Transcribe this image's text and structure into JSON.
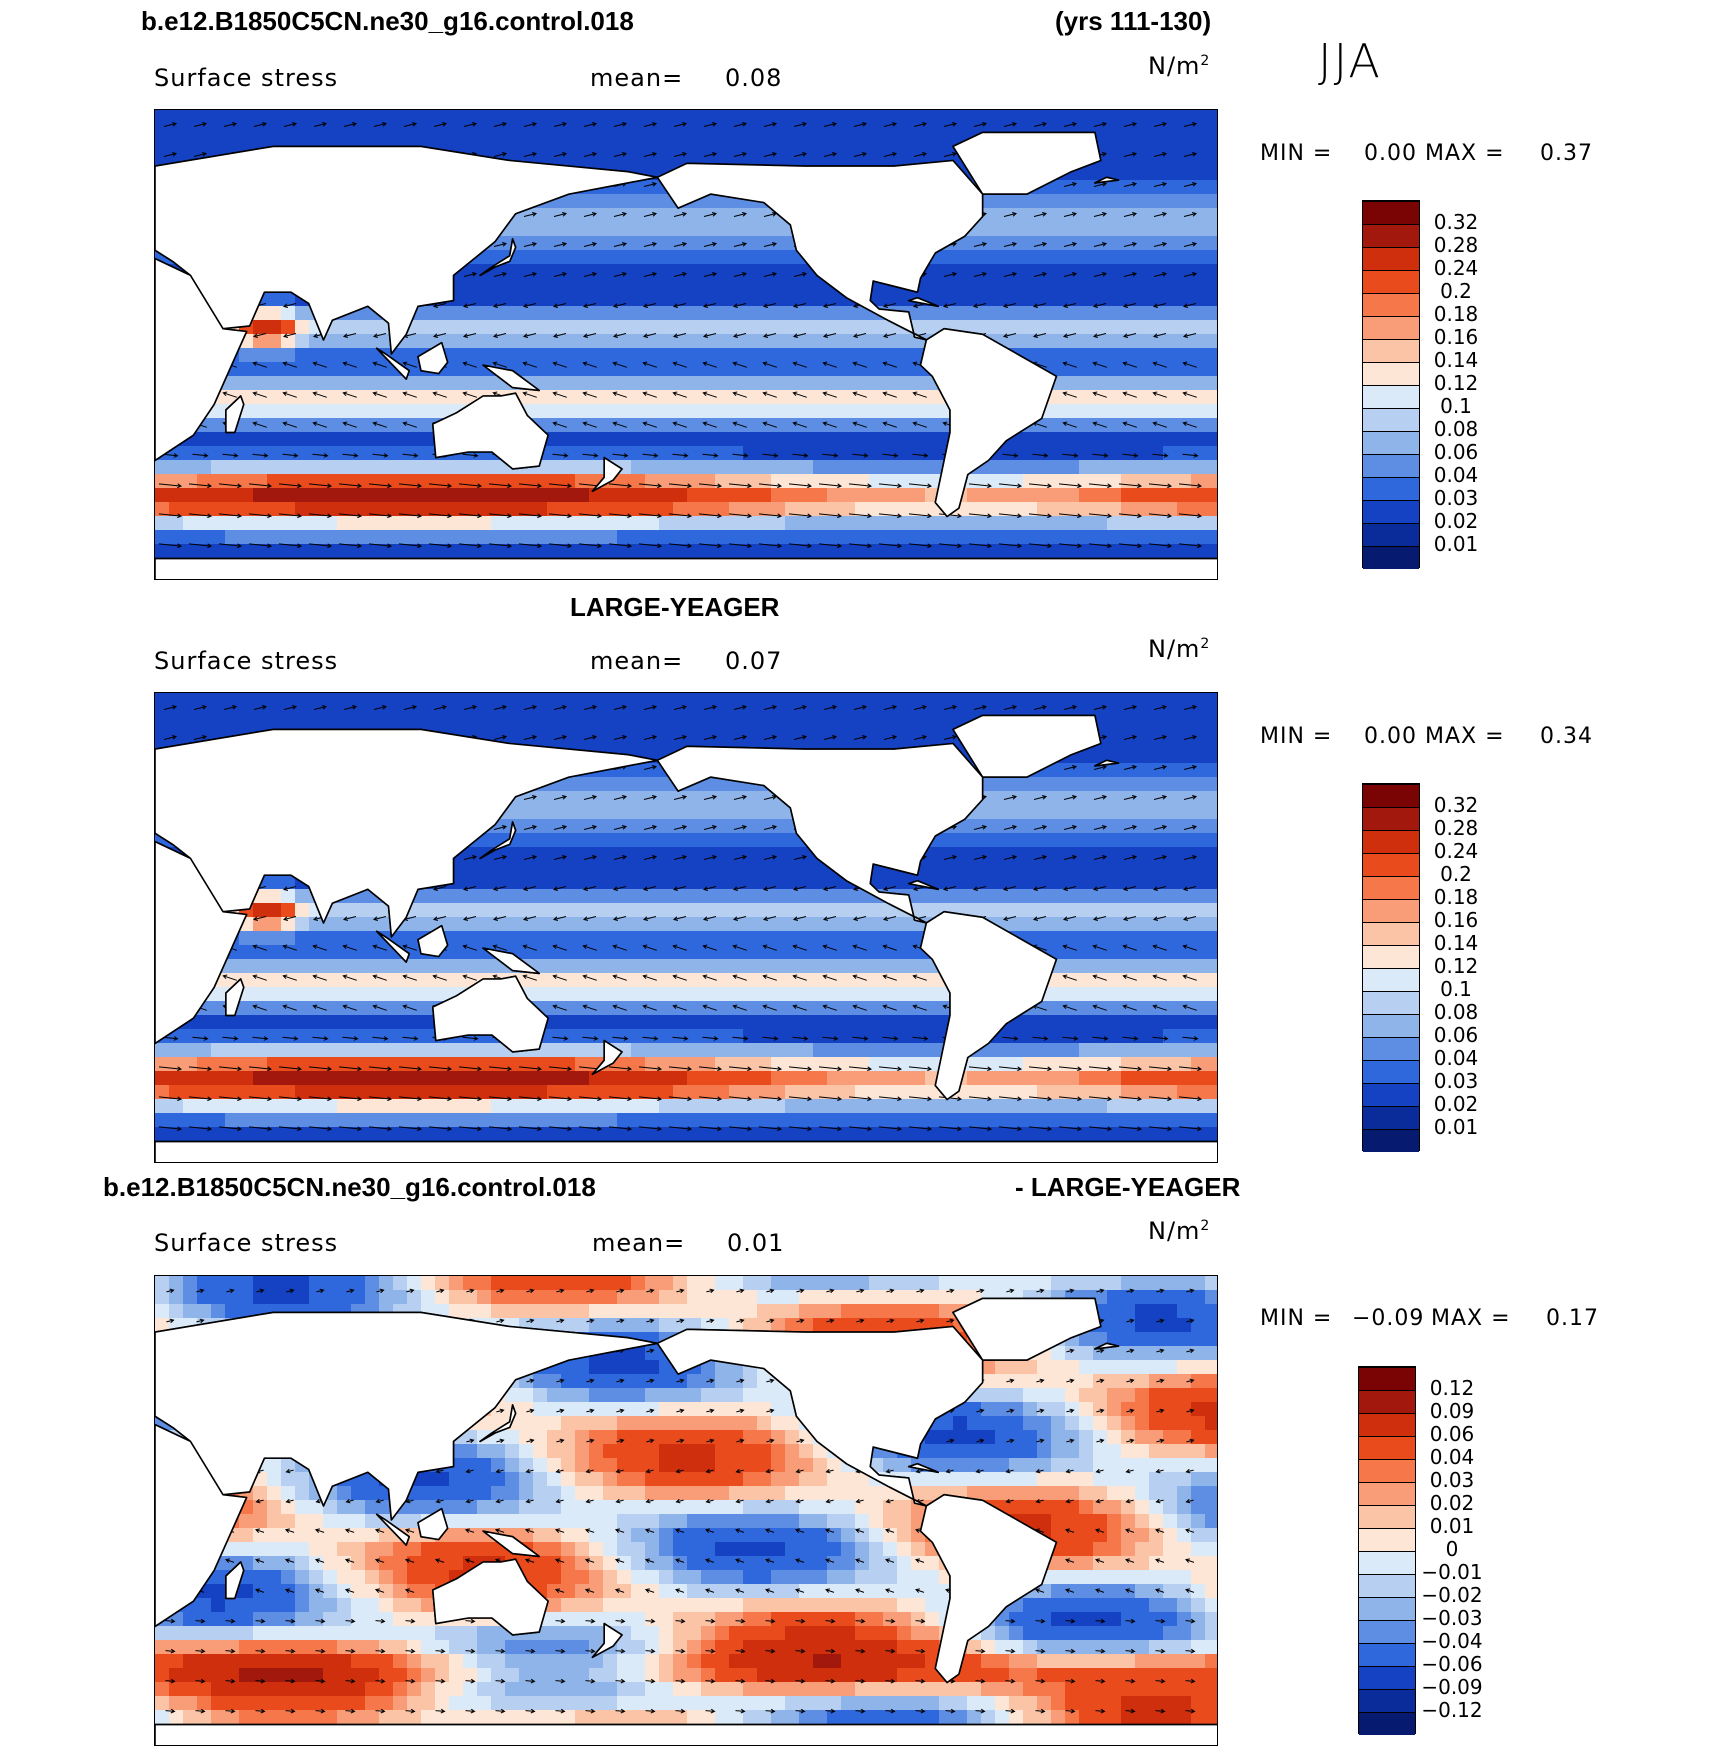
{
  "header": {
    "case_name": "b.e12.B1850C5CN.ne30_g16.control.018",
    "years": "(yrs 111-130)",
    "season": "JJA"
  },
  "panels": [
    {
      "title": "",
      "variable": "Surface stress",
      "mean_label": "mean=",
      "mean_value": "0.08",
      "unit_base": "N/m",
      "unit_exp": "2",
      "min_label": "MIN =",
      "min_value": "0.00",
      "max_label": "MAX =",
      "max_value": "0.37",
      "colorbar_labels": [
        "0.32",
        "0.28",
        "0.24",
        "0.2",
        "0.18",
        "0.16",
        "0.14",
        "0.12",
        "0.1",
        "0.08",
        "0.06",
        "0.04",
        "0.03",
        "0.02",
        "0.01"
      ],
      "colorbar_colors": [
        "#7a0403",
        "#a3180c",
        "#cf2f0c",
        "#e94b1d",
        "#f6774a",
        "#f89d77",
        "#fbc4a6",
        "#fde6d6",
        "#dbeaf8",
        "#b7d0f1",
        "#8fb4ea",
        "#5d8ee3",
        "#2f68dc",
        "#1542c2",
        "#0a2c9b",
        "#061b6f"
      ],
      "map_palette": "positive"
    },
    {
      "title": "LARGE-YEAGER",
      "variable": "Surface stress",
      "mean_label": "mean=",
      "mean_value": "0.07",
      "unit_base": "N/m",
      "unit_exp": "2",
      "min_label": "MIN =",
      "min_value": "0.00",
      "max_label": "MAX =",
      "max_value": "0.34",
      "colorbar_labels": [
        "0.32",
        "0.28",
        "0.24",
        "0.2",
        "0.18",
        "0.16",
        "0.14",
        "0.12",
        "0.1",
        "0.08",
        "0.06",
        "0.04",
        "0.03",
        "0.02",
        "0.01"
      ],
      "colorbar_colors": [
        "#7a0403",
        "#a3180c",
        "#cf2f0c",
        "#e94b1d",
        "#f6774a",
        "#f89d77",
        "#fbc4a6",
        "#fde6d6",
        "#dbeaf8",
        "#b7d0f1",
        "#8fb4ea",
        "#5d8ee3",
        "#2f68dc",
        "#1542c2",
        "#0a2c9b",
        "#061b6f"
      ],
      "map_palette": "positive"
    },
    {
      "title_left": "b.e12.B1850C5CN.ne30_g16.control.018",
      "title_right": "- LARGE-YEAGER",
      "variable": "Surface stress",
      "mean_label": "mean=",
      "mean_value": "0.01",
      "unit_base": "N/m",
      "unit_exp": "2",
      "min_label": "MIN =",
      "min_value": "−0.09",
      "max_label": "MAX =",
      "max_value": "0.17",
      "colorbar_labels": [
        "0.12",
        "0.09",
        "0.06",
        "0.04",
        "0.03",
        "0.02",
        "0.01",
        "0",
        "−0.01",
        "−0.02",
        "−0.03",
        "−0.04",
        "−0.06",
        "−0.09",
        "−0.12"
      ],
      "colorbar_colors": [
        "#7a0403",
        "#a3180c",
        "#cf2f0c",
        "#e94b1d",
        "#f6774a",
        "#f89d77",
        "#fbc4a6",
        "#fde6d6",
        "#dbeaf8",
        "#b7d0f1",
        "#8fb4ea",
        "#5d8ee3",
        "#2f68dc",
        "#1542c2",
        "#0a2c9b",
        "#061b6f"
      ],
      "map_palette": "difference"
    }
  ]
}
